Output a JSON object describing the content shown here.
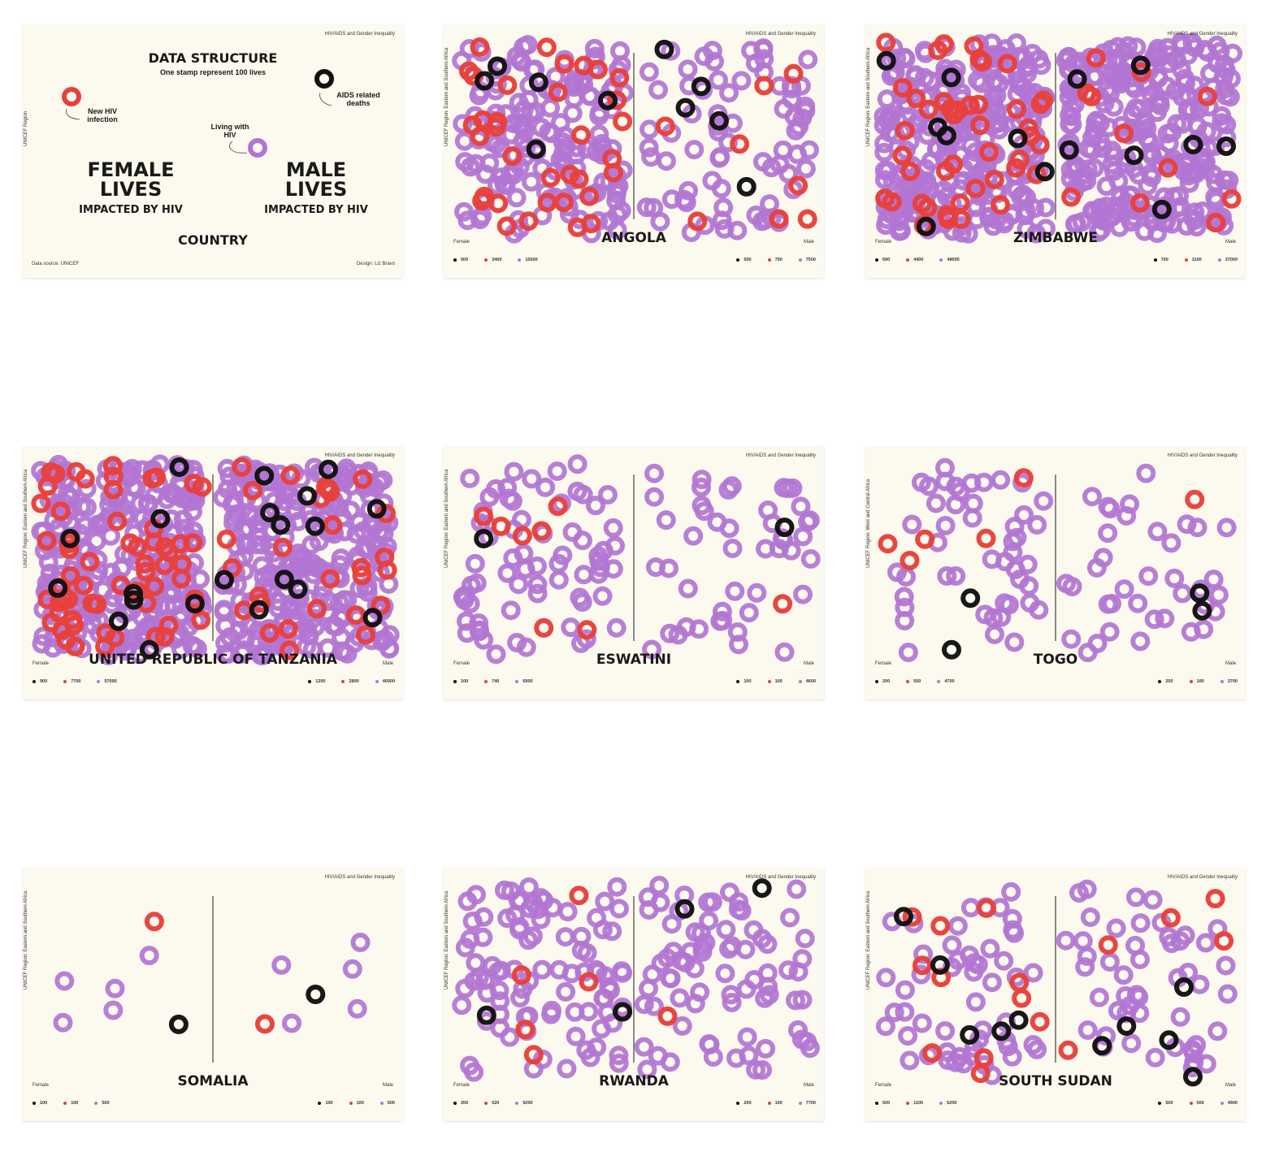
{
  "colors": {
    "deaths": "#111111",
    "infection": "#e8403b",
    "living": "#b275d3",
    "background": "#fcf9ee"
  },
  "structure": {
    "header": "HIV/AIDS and Gender Inequality",
    "title": "DATA STRUCTURE",
    "subtitle": "One stamp represent 100 lives",
    "new_infection_label": "New HIV infection",
    "deaths_label": "AIDS related deaths",
    "living_label": "Living with HIV",
    "side_label": "UNICEF Region",
    "female_title": "FEMALE LIVES",
    "male_title": "MALE LIVES",
    "female_sub": "IMPACTED BY HIV",
    "male_sub": "IMPACTED BY HIV",
    "country": "COUNTRY",
    "source": "Data source: UNICEF",
    "credit": "Design: Liz Bravo"
  },
  "chart_data": [
    {
      "type": "scatter",
      "country": "ANGOLA",
      "header": "HIV/AIDS and Gender Inequality",
      "region": "UNICEF Region: Eastern and Southern Africa",
      "female_label": "Female",
      "male_label": "Male",
      "female": {
        "deaths": 500,
        "infection": 3400,
        "living": 15000
      },
      "male": {
        "deaths": 500,
        "infection": 750,
        "living": 7500
      }
    },
    {
      "type": "scatter",
      "country": "ZIMBABWE",
      "header": "HIV/AIDS and Gender Inequality",
      "region": "UNICEF Region: Eastern and Southern Africa",
      "female_label": "Female",
      "male_label": "Male",
      "female": {
        "deaths": 690,
        "infection": 4400,
        "living": 48000
      },
      "male": {
        "deaths": 700,
        "infection": 1100,
        "living": 37000
      }
    },
    {
      "type": "scatter",
      "country": "UNITED REPUBLIC OF TANZANIA",
      "header": "HIV/AIDS and Gender Inequality",
      "region": "UNICEF Region: Eastern and Southern Africa",
      "female_label": "Female",
      "male_label": "Male",
      "female": {
        "deaths": 900,
        "infection": 7700,
        "living": 57000
      },
      "male": {
        "deaths": 1200,
        "infection": 2800,
        "living": 40000
      }
    },
    {
      "type": "scatter",
      "country": "ESWATINI",
      "header": "HIV/AIDS and Gender Inequality",
      "region": "UNICEF Region: Eastern and Southern Africa",
      "female_label": "Female",
      "male_label": "Male",
      "female": {
        "deaths": 100,
        "infection": 740,
        "living": 6900
      },
      "male": {
        "deaths": 100,
        "infection": 100,
        "living": 4600
      }
    },
    {
      "type": "scatter",
      "country": "TOGO",
      "header": "HIV/AIDS and Gender Inequality",
      "region": "UNICEF Region: West and Central Africa",
      "female_label": "Female",
      "male_label": "Male",
      "female": {
        "deaths": 200,
        "infection": 500,
        "living": 4700
      },
      "male": {
        "deaths": 200,
        "infection": 100,
        "living": 3700
      }
    },
    {
      "type": "scatter",
      "country": "SOMALIA",
      "header": "HIV/AIDS and Gender Inequality",
      "region": "UNICEF Region: Eastern and Southern Africa",
      "female_label": "Female",
      "male_label": "Male",
      "female": {
        "deaths": 100,
        "infection": 100,
        "living": 500
      },
      "male": {
        "deaths": 100,
        "infection": 100,
        "living": 500
      }
    },
    {
      "type": "scatter",
      "country": "RWANDA",
      "header": "HIV/AIDS and Gender Inequality",
      "region": "UNICEF Region: Eastern and Southern Africa",
      "female_label": "Female",
      "male_label": "Male",
      "female": {
        "deaths": 200,
        "infection": 520,
        "living": 9200
      },
      "male": {
        "deaths": 200,
        "infection": 100,
        "living": 7700
      }
    },
    {
      "type": "scatter",
      "country": "SOUTH SUDAN",
      "header": "HIV/AIDS and Gender Inequality",
      "region": "UNICEF Region: Eastern and Southern Africa",
      "female_label": "Female",
      "male_label": "Male",
      "female": {
        "deaths": 500,
        "infection": 1100,
        "living": 5200
      },
      "male": {
        "deaths": 500,
        "infection": 500,
        "living": 4900
      }
    }
  ]
}
